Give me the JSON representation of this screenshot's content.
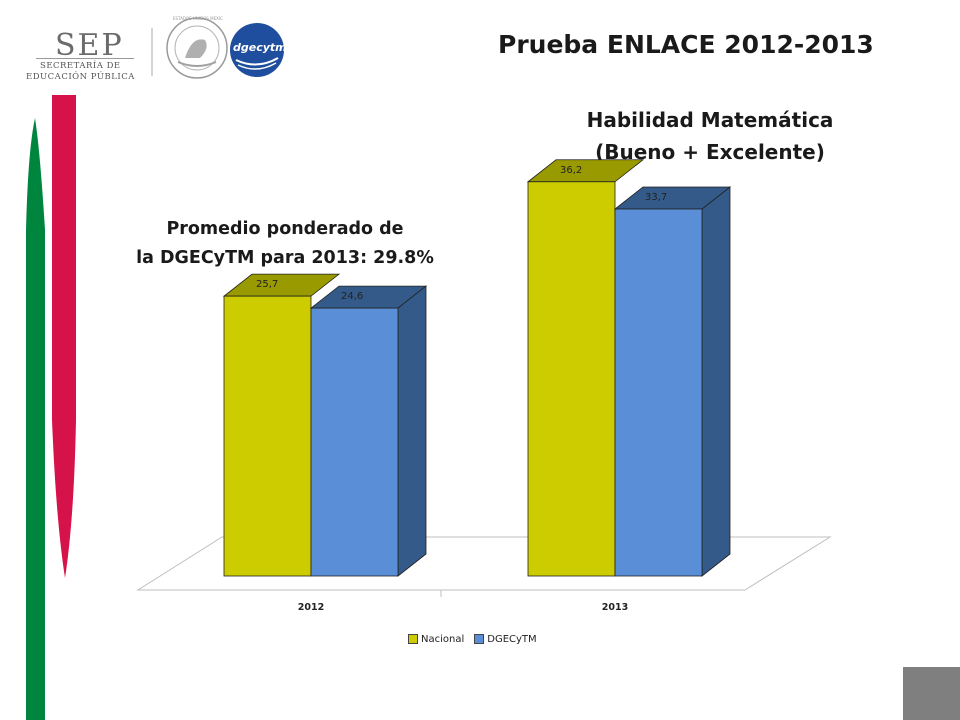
{
  "header": {
    "logo_word": "SEP",
    "logo_sub1": "SECRETARÍA DE",
    "logo_sub2": "EDUCACIÓN PÚBLICA",
    "seal_text": "ESTADOS UNIDOS MEXICANOS",
    "badge_text": "dgecytm",
    "title": "Prueba ENLACE 2012-2013"
  },
  "subtitle_line1": "Habilidad Matemática",
  "subtitle_line2": "(Bueno + Excelente)",
  "note_line1": "Promedio ponderado de",
  "note_line2": "la DGECyTM para 2013: 29.8%",
  "colors": {
    "green": "#00853f",
    "red": "#d6124a",
    "nacional_front": "#cccc00",
    "nacional_top": "#999900",
    "dgecytm_front": "#5a8ed6",
    "dgecytm_side": "#335a88",
    "corner_block": "#7f7f7f"
  },
  "chart_data": {
    "type": "bar",
    "categories": [
      "2012",
      "2013"
    ],
    "series": [
      {
        "name": "Nacional",
        "values": [
          25.7,
          36.2
        ],
        "labels": [
          "25,7",
          "36,2"
        ]
      },
      {
        "name": "DGECyTM",
        "values": [
          24.6,
          33.7
        ],
        "labels": [
          "24,6",
          "33,7"
        ]
      }
    ],
    "ylim": [
      0,
      40
    ],
    "grid": false,
    "legend": "bottom"
  }
}
